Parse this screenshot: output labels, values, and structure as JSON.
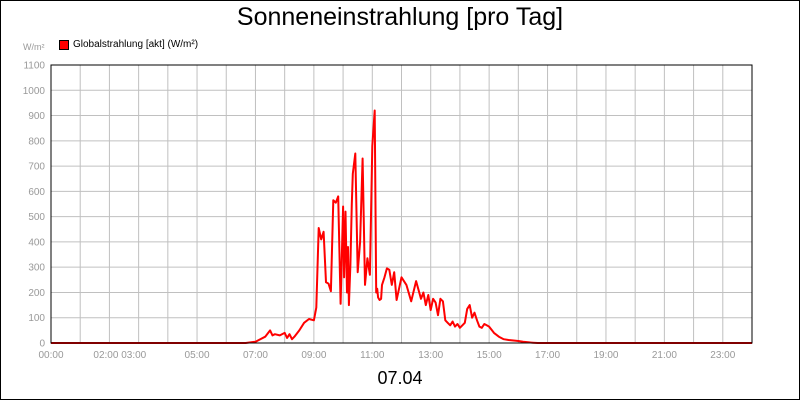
{
  "chart_data": {
    "type": "line",
    "title": "Sonneneinstrahlung [pro Tag]",
    "ylabel": "W/m²",
    "date_label": "07.04",
    "ylim": [
      0,
      1100
    ],
    "xlim": [
      "00:00",
      "24:00"
    ],
    "grid": true,
    "legend_position": "top-left",
    "y_ticks": [
      "0",
      "100",
      "200",
      "300",
      "400",
      "500",
      "600",
      "700",
      "800",
      "900",
      "1000",
      "1100"
    ],
    "x_ticks": [
      "00:00",
      "02:00 03:00",
      "05:00",
      "07:00",
      "09:00",
      "11:00",
      "13:00",
      "15:00",
      "17:00",
      "19:00",
      "21:00",
      "23:00"
    ],
    "series": [
      {
        "name": "Globalstrahlung [akt] (W/m²)",
        "color": "#ff0000",
        "x": [
          "00:00",
          "06:40",
          "07:00",
          "07:10",
          "07:20",
          "07:30",
          "07:35",
          "07:40",
          "07:50",
          "08:00",
          "08:05",
          "08:10",
          "08:15",
          "08:20",
          "08:30",
          "08:40",
          "08:50",
          "09:00",
          "09:05",
          "09:10",
          "09:15",
          "09:20",
          "09:25",
          "09:30",
          "09:35",
          "09:40",
          "09:45",
          "09:50",
          "09:55",
          "10:00",
          "10:02",
          "10:05",
          "10:08",
          "10:10",
          "10:12",
          "10:15",
          "10:18",
          "10:20",
          "10:25",
          "10:30",
          "10:35",
          "10:40",
          "10:45",
          "10:50",
          "10:55",
          "11:00",
          "11:05",
          "11:08",
          "11:10",
          "11:12",
          "11:15",
          "11:18",
          "11:20",
          "11:25",
          "11:30",
          "11:35",
          "11:40",
          "11:45",
          "11:50",
          "12:00",
          "12:10",
          "12:20",
          "12:30",
          "12:40",
          "12:45",
          "12:50",
          "12:55",
          "13:00",
          "13:05",
          "13:10",
          "13:15",
          "13:20",
          "13:25",
          "13:30",
          "13:35",
          "13:40",
          "13:45",
          "13:50",
          "13:55",
          "14:00",
          "14:05",
          "14:10",
          "14:15",
          "14:20",
          "14:25",
          "14:30",
          "14:35",
          "14:40",
          "14:45",
          "14:50",
          "14:55",
          "15:00",
          "15:10",
          "15:20",
          "15:30",
          "15:40",
          "15:50",
          "16:00",
          "16:10",
          "16:20",
          "16:25",
          "16:30",
          "16:40",
          "16:50",
          "17:00",
          "17:10",
          "17:20",
          "17:30",
          "17:40",
          "17:50",
          "18:00",
          "18:20",
          "18:40",
          "19:00",
          "19:30",
          "20:00",
          "20:30",
          "24:00"
        ],
        "values": [
          0,
          0,
          5,
          15,
          25,
          50,
          30,
          35,
          30,
          40,
          20,
          35,
          15,
          25,
          50,
          80,
          95,
          90,
          140,
          455,
          410,
          440,
          240,
          235,
          205,
          565,
          555,
          580,
          155,
          540,
          260,
          520,
          200,
          380,
          150,
          310,
          550,
          670,
          750,
          280,
          400,
          730,
          230,
          335,
          270,
          780,
          920,
          200,
          215,
          180,
          170,
          175,
          230,
          260,
          295,
          290,
          230,
          280,
          170,
          260,
          230,
          165,
          245,
          175,
          200,
          150,
          190,
          130,
          175,
          160,
          110,
          175,
          165,
          90,
          80,
          70,
          85,
          65,
          75,
          60,
          70,
          80,
          135,
          150,
          100,
          120,
          90,
          65,
          60,
          75,
          70,
          65,
          40,
          25,
          15,
          12,
          10,
          8,
          5,
          3,
          2,
          1,
          0,
          0,
          0,
          0,
          0,
          0,
          0,
          0,
          0,
          0,
          0,
          0,
          0,
          0,
          0,
          0
        ]
      }
    ]
  }
}
